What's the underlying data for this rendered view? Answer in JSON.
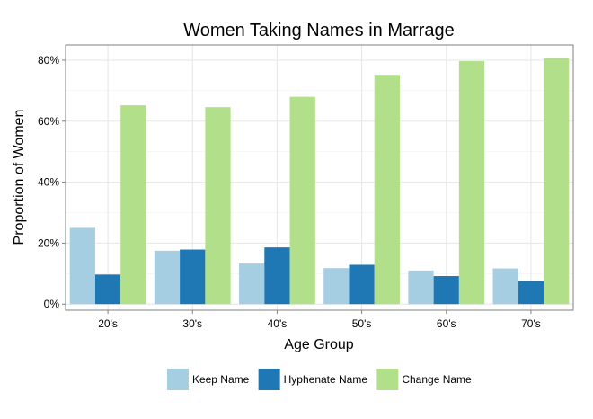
{
  "chart_data": {
    "type": "bar",
    "title": "Women Taking Names in Marrage",
    "xlabel": "Age Group",
    "ylabel": "Proportion of Women",
    "categories": [
      "20's",
      "30's",
      "40's",
      "50's",
      "60's",
      "70's"
    ],
    "series": [
      {
        "name": "Keep Name",
        "color": "#a6cee3",
        "values": [
          0.25,
          0.175,
          0.133,
          0.118,
          0.11,
          0.117
        ]
      },
      {
        "name": "Hyphenate Name",
        "color": "#1f78b4",
        "values": [
          0.097,
          0.179,
          0.186,
          0.129,
          0.092,
          0.076
        ]
      },
      {
        "name": "Change Name",
        "color": "#b2df8a",
        "values": [
          0.652,
          0.646,
          0.68,
          0.752,
          0.797,
          0.807
        ]
      }
    ],
    "yticks": [
      "0%",
      "20%",
      "40%",
      "60%",
      "80%"
    ],
    "ytick_values": [
      0,
      0.2,
      0.4,
      0.6,
      0.8
    ],
    "ylim": [
      -0.02,
      0.85
    ],
    "grid": true,
    "legend_position": "bottom"
  }
}
